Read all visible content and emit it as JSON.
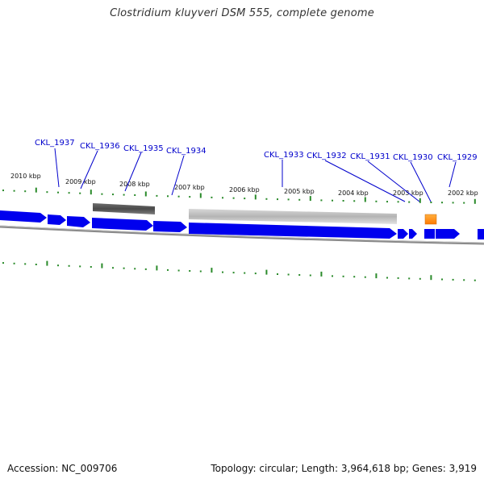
{
  "title": "Clostridium kluyveri DSM 555, complete genome",
  "footer": {
    "accession": "Accession: NC_009706",
    "summary": "Topology: circular; Length: 3,964,618 bp; Genes: 3,919"
  },
  "colors": {
    "cds": "#0000ee",
    "cds_highlight": "#ff8800",
    "label_link": "#0000cc",
    "backbone": "#888888",
    "tick": "#2a8a2a",
    "gc_dark": "#5a5a5a",
    "gc_light": "#c2c2c2"
  },
  "kbp_labels": [
    "2010 kbp",
    "2009 kbp",
    "2008 kbp",
    "2007 kbp",
    "2006 kbp",
    "2005 kbp",
    "2004 kbp",
    "2003 kbp",
    "2002 kbp"
  ],
  "gene_labels": [
    "CKL_1937",
    "CKL_1936",
    "CKL_1935",
    "CKL_1934",
    "CKL_1933",
    "CKL_1932",
    "CKL_1931",
    "CKL_1930",
    "CKL_1929"
  ],
  "icons": [
    "genome-backbone-arc",
    "cds-arrow",
    "gc-content-bar",
    "tick-mark"
  ]
}
